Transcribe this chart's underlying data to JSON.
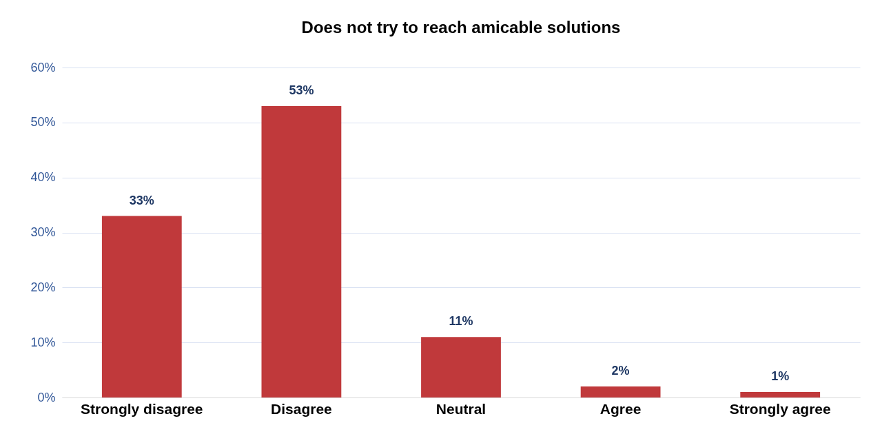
{
  "chart_data": {
    "type": "bar",
    "title": "Does not try to reach amicable solutions",
    "categories": [
      "Strongly disagree",
      "Disagree",
      "Neutral",
      "Agree",
      "Strongly agree"
    ],
    "values": [
      33,
      53,
      11,
      2,
      1
    ],
    "value_labels": [
      "33%",
      "53%",
      "11%",
      "2%",
      "1%"
    ],
    "color": "#c0393b",
    "ylim": [
      0,
      60
    ],
    "yticks": [
      {
        "value": 0,
        "label": "0%"
      },
      {
        "value": 10,
        "label": "10%"
      },
      {
        "value": 20,
        "label": "20%"
      },
      {
        "value": 30,
        "label": "30%"
      },
      {
        "value": 40,
        "label": "40%"
      },
      {
        "value": 50,
        "label": "50%"
      },
      {
        "value": 60,
        "label": "60%"
      }
    ],
    "grid": "y"
  }
}
